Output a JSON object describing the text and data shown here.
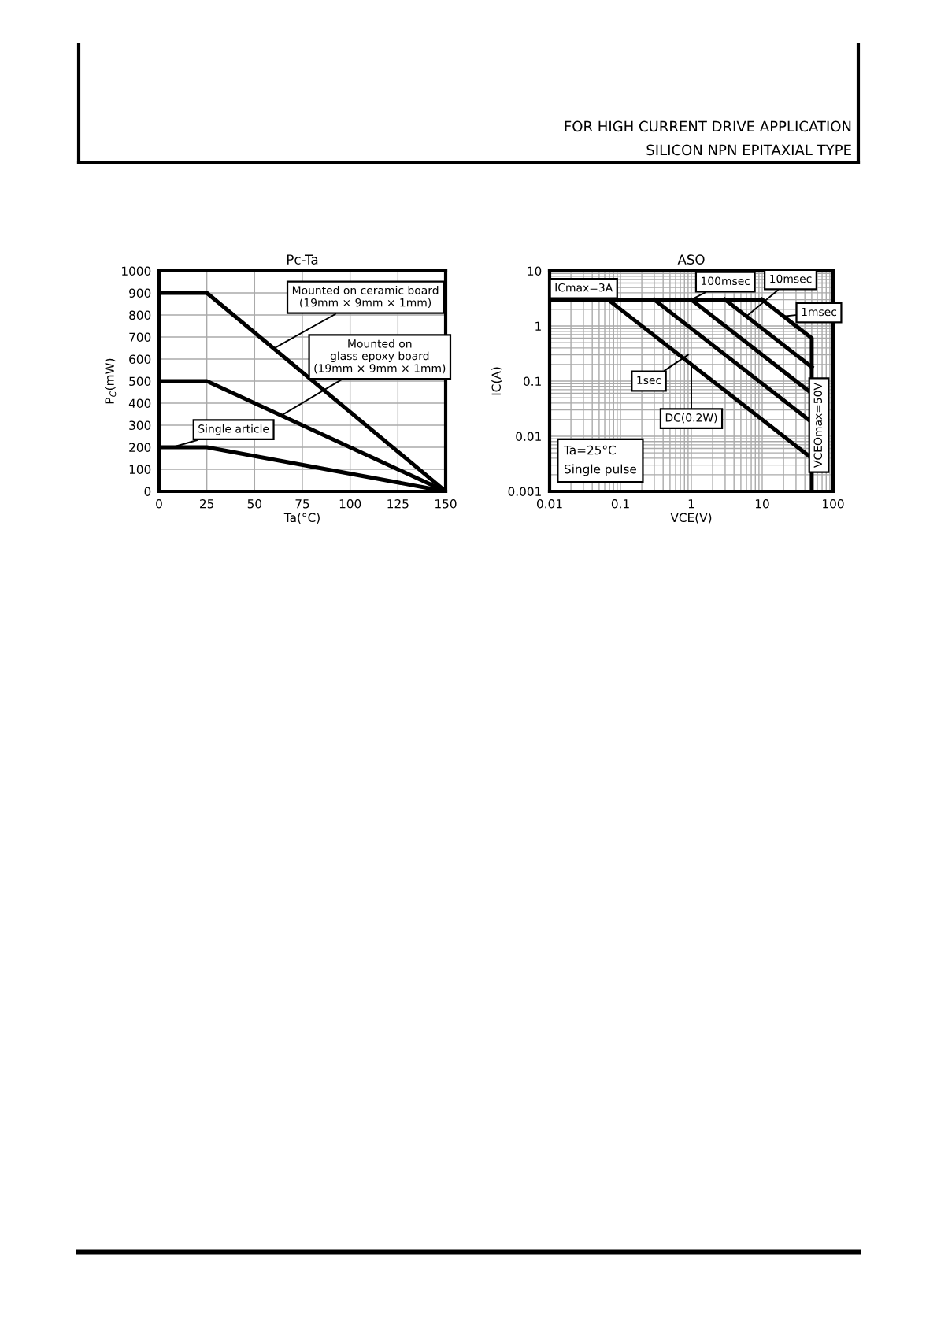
{
  "chart_data": [
    {
      "type": "line",
      "title": "Pc-Ta",
      "xlabel": "Ta(°C)",
      "ylabel": "P$_{C}$(mW)",
      "x": [
        0,
        25,
        150
      ],
      "series": [
        {
          "color": "#000000",
          "values": [
            900,
            900,
            0
          ]
        },
        {
          "color": "#000000",
          "values": [
            500,
            500,
            0
          ]
        },
        {
          "color": "#000000",
          "values": [
            200,
            200,
            0
          ]
        }
      ],
      "xlim": [
        0,
        150
      ],
      "xticks": [
        0,
        25,
        50,
        75,
        100,
        125,
        150
      ],
      "ylim": [
        0,
        1000
      ],
      "yticks": [
        0,
        100,
        200,
        300,
        400,
        500,
        600,
        700,
        800,
        900,
        1000
      ],
      "grid": true,
      "legend": false,
      "marker": "none",
      "line_style": "solid",
      "annotations": [
        "FOR HIGH CURRENT DRIVE APPLICATION",
        "SILICON NPN EPITAXIAL TYPE",
        {
          "text": "Mounted on ceramic board\n(19mm × 9mm × 1mm)",
          "x": 60,
          "y": 648
        },
        {
          "text": "Mounted on\nglass epoxy board\n(19mm × 9mm × 1mm)",
          "x": 64,
          "y": 344
        },
        {
          "text": "Single article",
          "x": 7,
          "y": 200
        }
      ]
    },
    {
      "type": "line",
      "title": "ASO",
      "xlabel": "VCE(V)",
      "ylabel": "IC(A)",
      "log": "xy",
      "series": [
        {
          "color": "#000000",
          "x": [
            0.01,
            10
          ],
          "values": [
            3,
            3
          ]
        },
        {
          "color": "#000000",
          "x": [
            10,
            50,
            50
          ],
          "values": [
            3,
            0.6,
            0.001
          ]
        },
        {
          "color": "#000000",
          "x": [
            3,
            50
          ],
          "values": [
            3,
            0.18
          ]
        },
        {
          "color": "#000000",
          "x": [
            1,
            50
          ],
          "values": [
            3,
            0.06
          ]
        },
        {
          "color": "#000000",
          "x": [
            0.3,
            50
          ],
          "values": [
            3,
            0.018
          ]
        },
        {
          "color": "#000000",
          "x": [
            0.067,
            50
          ],
          "values": [
            3,
            0.004
          ]
        }
      ],
      "xlim": [
        0.01,
        100
      ],
      "xticks": [
        {
          "value": 0.01,
          "label": "0.01"
        },
        {
          "value": 0.1,
          "label": "0.1"
        },
        1,
        10,
        100
      ],
      "ylim": [
        0.001,
        10
      ],
      "yticks": [
        {
          "value": 0.001,
          "label": "0.001"
        },
        {
          "value": 0.01,
          "label": "0.01"
        },
        {
          "value": 0.1,
          "label": "0.1"
        },
        1,
        10
      ],
      "grid": true,
      "legend": false,
      "marker": "none",
      "line_style": "solid",
      "annotations": [
        "Ta=25°C\nSingle pulse",
        {
          "text": "ICmax=3A",
          "x": 0.05,
          "y": 3
        },
        {
          "text": "100msec",
          "x": 1,
          "y": 3
        },
        {
          "text": "10msec",
          "x": 6,
          "y": 1.5
        },
        {
          "text": "1msec",
          "x": 20,
          "y": 1.5
        },
        {
          "text": "1sec",
          "x": 0.9,
          "y": 0.3
        },
        {
          "text": "DC(0.2W)",
          "x": 1,
          "y": 0.2
        },
        {
          "text": "VCEOmax=50V",
          "x": 50,
          "y": 0.01
        }
      ]
    }
  ]
}
